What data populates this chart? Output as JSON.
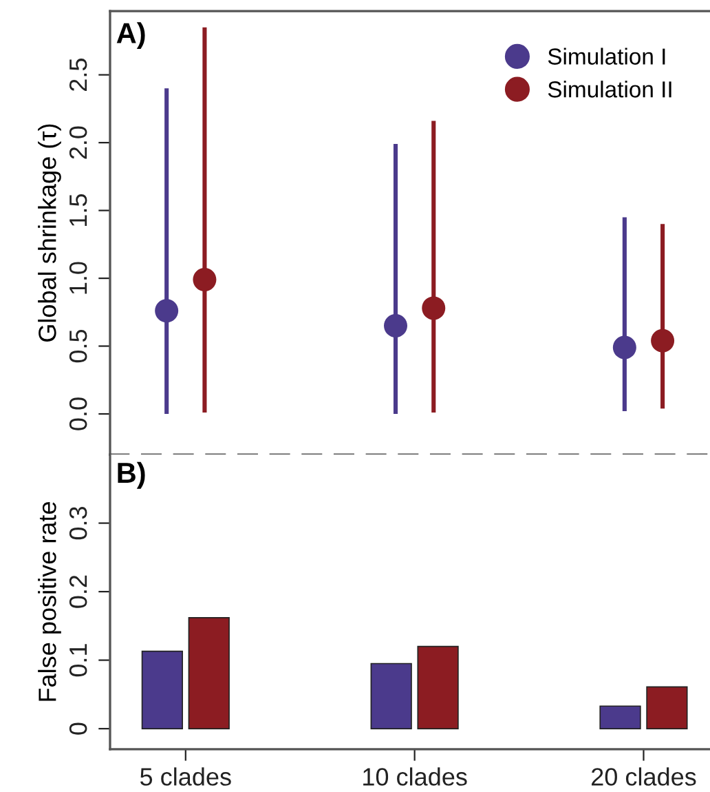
{
  "chart_data": [
    {
      "type": "scatter",
      "ylabel": "Global shrinkage (τ)",
      "annotations": [
        "A)"
      ],
      "ylim": [
        -0.3,
        2.97
      ],
      "yticks": [
        {
          "value": 0,
          "label": "0.0"
        },
        0.5,
        {
          "value": 1,
          "label": "1.0"
        },
        1.5,
        {
          "value": 2,
          "label": "2.0"
        },
        2.5
      ],
      "tick_labels": "y",
      "legend": "top right",
      "marker": "circle",
      "grid": false,
      "series": [
        {
          "name": "Simulation I",
          "color": "#4b3a8c",
          "values": [
            0.76,
            0.65,
            0.49
          ],
          "errors": [
            [
              0,
              2.4
            ],
            [
              0,
              1.99
            ],
            [
              0.02,
              1.45
            ]
          ]
        },
        {
          "name": "Simulation II",
          "color": "#8c1c22",
          "values": [
            0.99,
            0.78,
            0.54
          ],
          "errors": [
            [
              0.01,
              2.85
            ],
            [
              0.01,
              2.16
            ],
            [
              0.04,
              1.4
            ]
          ]
        }
      ]
    },
    {
      "type": "bar",
      "ylabel": "False positive rate",
      "annotations": [
        "B)"
      ],
      "categories": [
        "5 clades",
        "10 clades",
        "20 clades"
      ],
      "ylim": [
        -0.03,
        0.4
      ],
      "yticks": [
        0,
        0.1,
        0.2,
        0.3
      ],
      "grid": false,
      "series": [
        {
          "color": "#4b3a8c",
          "values": [
            0.113,
            0.095,
            0.033
          ]
        },
        {
          "color": "#8c1c22",
          "values": [
            0.162,
            0.12,
            0.061
          ]
        }
      ]
    }
  ]
}
